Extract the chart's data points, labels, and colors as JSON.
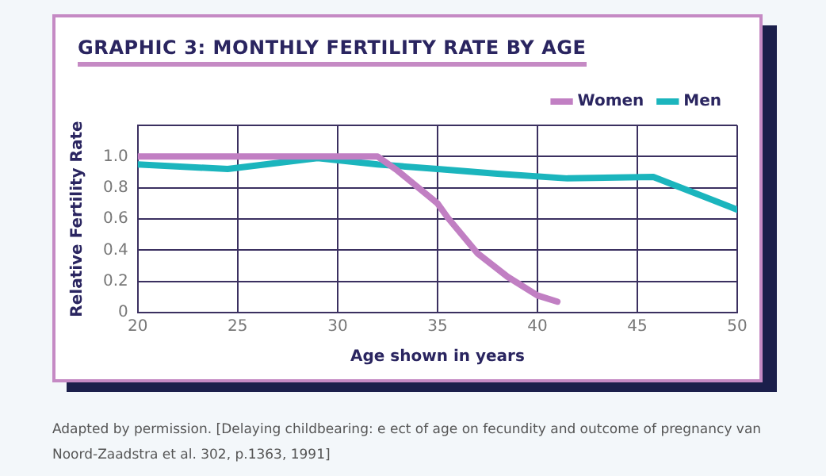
{
  "chart_data": {
    "type": "line",
    "title": "GRAPHIC 3: MONTHLY FERTILITY RATE BY AGE",
    "xlabel": "Age shown in years",
    "ylabel": "Relative Fertility Rate",
    "xlim": [
      20,
      50
    ],
    "xticks": [
      20,
      25,
      30,
      35,
      40,
      45,
      50
    ],
    "ylim": [
      0,
      1.2
    ],
    "yticks": [
      0,
      0.2,
      0.4,
      0.6,
      0.8,
      {
        "value": 1.0,
        "label": "1.0"
      },
      {
        "value": 1.2,
        "label": null
      }
    ],
    "grid": true,
    "legend": "top right",
    "marker": "none",
    "line_style": "solid",
    "series": [
      {
        "name": "Women",
        "color": "#c17fc3",
        "x": [
          20,
          31,
          32,
          33,
          35,
          35.5,
          37,
          38.5,
          40,
          41
        ],
        "values": [
          1.0,
          1.0,
          1.0,
          0.91,
          0.7,
          0.61,
          0.38,
          0.23,
          0.11,
          0.07
        ]
      },
      {
        "name": "Men",
        "color": "#1bb5bd",
        "x": [
          20,
          24.5,
          29,
          32,
          35,
          38,
          41.5,
          45.8,
          50
        ],
        "values": [
          0.95,
          0.92,
          0.99,
          0.95,
          0.92,
          0.89,
          0.86,
          0.87,
          0.66
        ]
      }
    ],
    "annotations": [
      "Adapted by permission. [Delaying childbearing: e ect of age on fecundity and outcome of pregnancy van Noord-Zaadstra et al. 302, p.1363, 1991]"
    ]
  }
}
